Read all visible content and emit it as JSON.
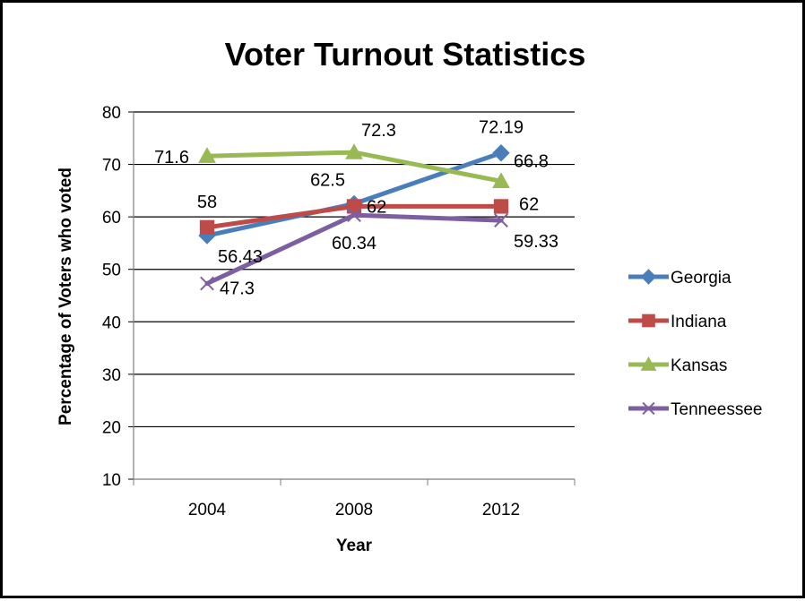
{
  "chart_data": {
    "type": "line",
    "title": "Voter Turnout Statistics",
    "xlabel": "Year",
    "ylabel": "Percentage of Voters who voted",
    "categories": [
      "2004",
      "2008",
      "2012"
    ],
    "ylim": [
      10,
      80
    ],
    "yticks": [
      "10",
      "20",
      "30",
      "40",
      "50",
      "60",
      "70",
      "80"
    ],
    "grid": true,
    "legend_position": "right",
    "series": [
      {
        "name": "Georgia",
        "values": [
          56.43,
          62.5,
          72.19
        ],
        "labels": [
          "56.43",
          "62.5",
          "72.19"
        ],
        "color": "#4a7ebb",
        "marker": "diamond"
      },
      {
        "name": "Indiana",
        "values": [
          58,
          62,
          62
        ],
        "labels": [
          "58",
          "62",
          "62"
        ],
        "color": "#be4b48",
        "marker": "square"
      },
      {
        "name": "Kansas",
        "values": [
          71.6,
          72.3,
          66.8
        ],
        "labels": [
          "71.6",
          "72.3",
          "66.8"
        ],
        "color": "#98b954",
        "marker": "triangle"
      },
      {
        "name": "Tenneessee",
        "values": [
          47.3,
          60.34,
          59.33
        ],
        "labels": [
          "47.3",
          "60.34",
          "59.33"
        ],
        "color": "#7d5fa0",
        "marker": "x"
      }
    ]
  }
}
